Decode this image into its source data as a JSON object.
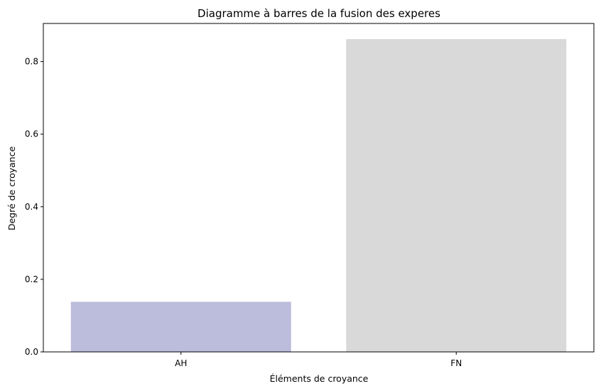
{
  "chart_data": {
    "type": "bar",
    "title": "Diagramme à barres de la fusion des experes",
    "xlabel": "Éléments de croyance",
    "ylabel": "Degré de croyance",
    "categories": [
      "AH",
      "FN"
    ],
    "values": [
      0.138,
      0.862
    ],
    "colors": [
      "#bcbddc",
      "#d9d9d9"
    ],
    "ylim": [
      0,
      0.905
    ],
    "yticks": [
      0.0,
      0.2,
      0.4,
      0.6,
      0.8
    ],
    "ytick_labels": [
      "0.0",
      "0.2",
      "0.4",
      "0.6",
      "0.8"
    ],
    "grid": false,
    "legend": "none"
  }
}
